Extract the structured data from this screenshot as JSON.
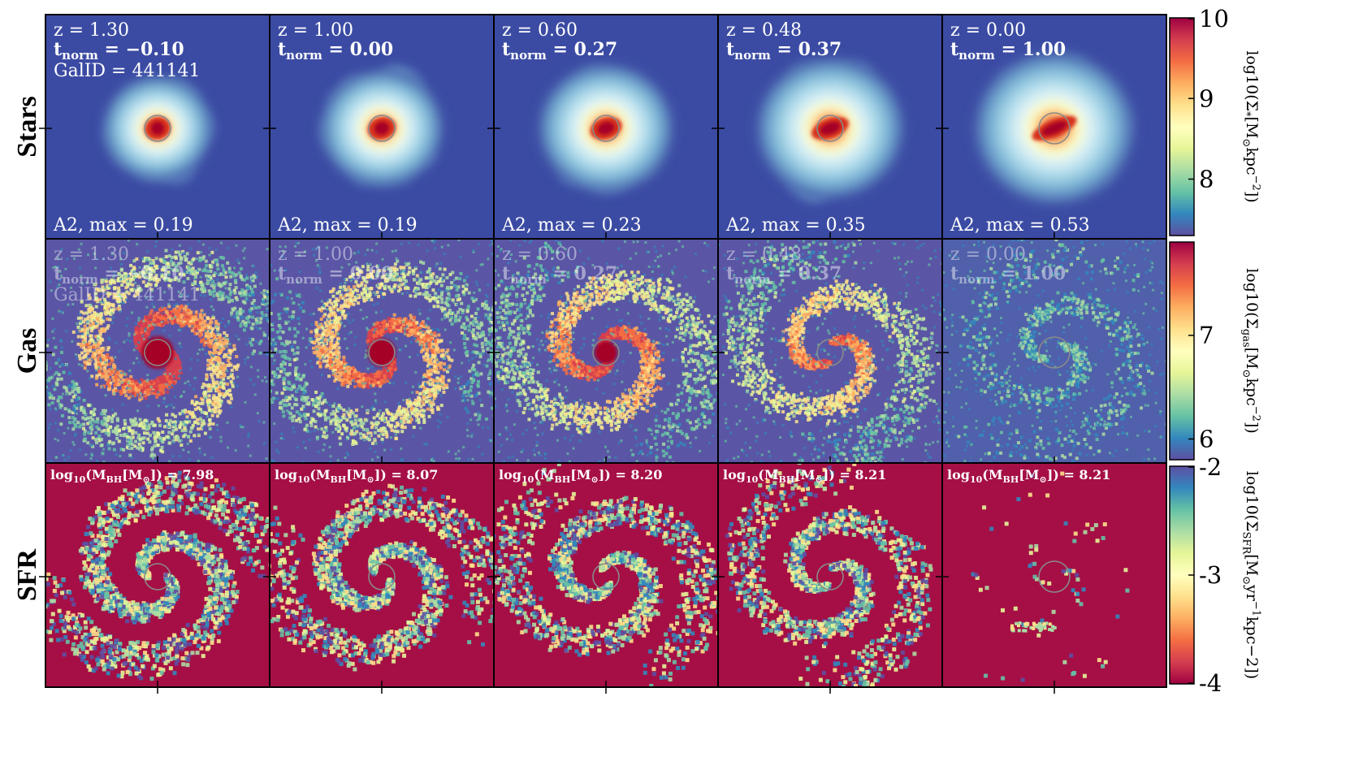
{
  "chart_data": {
    "type": "heatmap",
    "rows": [
      {
        "label": "Stars",
        "colormap": "Spectral_r",
        "colorbar": {
          "min": 7.3,
          "max": 10,
          "ticks": [
            "10",
            "9",
            "8"
          ],
          "tick_values": [
            10,
            9,
            8
          ],
          "label_main": "log10(Σ",
          "label_sub": "*",
          "label_rest": "[M",
          "label_sun": "⊙",
          "label_kpc": "kpc",
          "label_exp": "−2",
          "label_end": "])"
        }
      },
      {
        "label": "Gas",
        "colormap": "Spectral_r",
        "colorbar": {
          "min": 5.8,
          "max": 7.9,
          "ticks": [
            "7",
            "6"
          ],
          "tick_values": [
            7,
            6
          ],
          "label_main": "log10(Σ",
          "label_sub": "gas",
          "label_rest": "[M",
          "label_sun": "⊙",
          "label_kpc": "kpc",
          "label_exp": "−2",
          "label_end": "])"
        }
      },
      {
        "label": "SFR",
        "colormap": "Spectral",
        "colorbar": {
          "min": -4,
          "max": -2,
          "ticks": [
            "-2",
            "-3",
            "-4"
          ],
          "tick_values": [
            -2,
            -3,
            -4
          ],
          "label_main": "log10(Σ",
          "label_sub": "SFR",
          "label_rest": "[M",
          "label_sun": "⊙",
          "label_kpc": "yr",
          "label_exp": "−1",
          "label_end": "kpc−2])"
        }
      }
    ],
    "snapshots": [
      {
        "z": "z = 1.30",
        "t_norm": "−0.10",
        "gal_id": "GalID = 441141",
        "a2_max": "A2, max = 0.19",
        "log_mbh": "7.98",
        "bar_strength": 0.0,
        "gas_disk": 1.0,
        "sf_level": 1.0
      },
      {
        "z": "z = 1.00",
        "t_norm": "0.00",
        "gal_id": "",
        "a2_max": "A2, max = 0.19",
        "log_mbh": "8.07",
        "bar_strength": 0.1,
        "gas_disk": 0.9,
        "sf_level": 0.85
      },
      {
        "z": "z = 0.60",
        "t_norm": "0.27",
        "gal_id": "",
        "a2_max": "A2, max = 0.23",
        "log_mbh": "8.20",
        "bar_strength": 0.25,
        "gas_disk": 0.9,
        "sf_level": 0.8
      },
      {
        "z": "z = 0.48",
        "t_norm": "0.37",
        "gal_id": "",
        "a2_max": "A2, max = 0.35",
        "log_mbh": "8.21",
        "bar_strength": 0.5,
        "gas_disk": 0.75,
        "sf_level": 0.7
      },
      {
        "z": "z = 0.00",
        "t_norm": "1.00",
        "gal_id": "",
        "a2_max": "A2, max = 0.53",
        "log_mbh": "8.21",
        "bar_strength": 0.85,
        "gas_disk": 0.15,
        "sf_level": 0.03
      }
    ],
    "t_norm_prefix": "t",
    "t_norm_sub": "norm",
    "mbh_prefix": "log",
    "mbh_sub10": "10",
    "mbh_mid": "(M",
    "mbh_sub_bh": "BH",
    "mbh_rest": "[M",
    "mbh_sun": "⊙",
    "mbh_end": "]) = ",
    "grid": false,
    "legend": "none"
  }
}
